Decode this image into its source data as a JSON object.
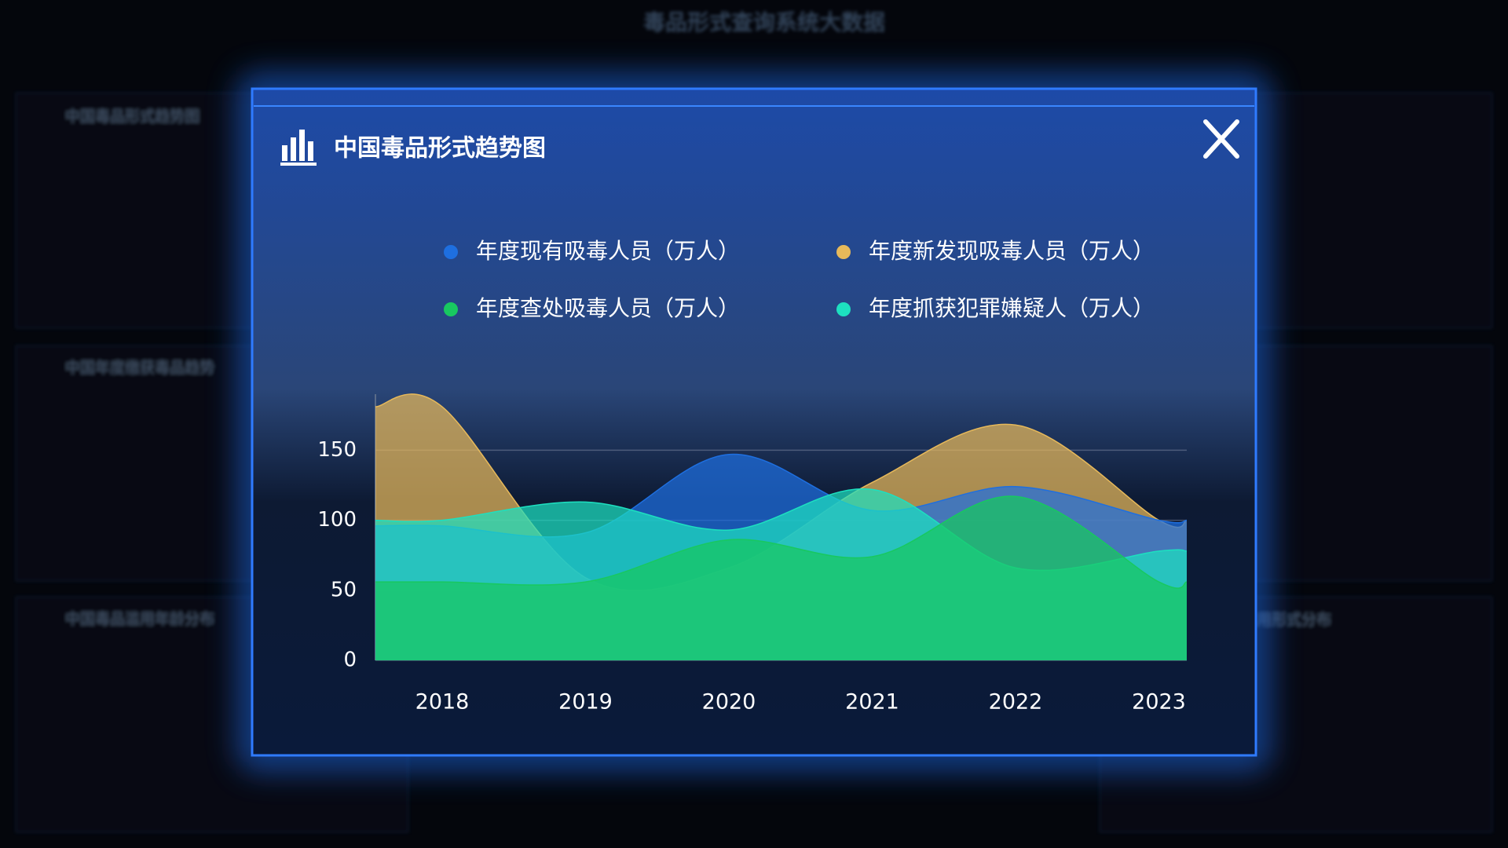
{
  "background": {
    "title": "毒品形式查询系统大数据",
    "panels": [
      "中国毒品形式趋势图",
      "中国年度缴获毒品趋势",
      "中国毒品滥用年龄分布",
      "中国毒品种类滥用形式分布"
    ]
  },
  "modal": {
    "title": "中国毒品形式趋势图"
  },
  "chart_data": {
    "type": "area",
    "categories": [
      "2018",
      "2019",
      "2020",
      "2021",
      "2022",
      "2023"
    ],
    "series": [
      {
        "name": "年度现有吸毒人员（万人）",
        "color": "#1e6fe0",
        "values": [
          96,
          91,
          147,
          107,
          124,
          100
        ]
      },
      {
        "name": "年度新发现吸毒人员（万人）",
        "color": "#e7b95a",
        "values": [
          181,
          59,
          66,
          127,
          168,
          100
        ]
      },
      {
        "name": "年度查处吸毒人员（万人）",
        "color": "#18c860",
        "values": [
          56,
          56,
          86,
          74,
          117,
          56
        ]
      },
      {
        "name": "年度抓获犯罪嫌疑人（万人）",
        "color": "#1de0c0",
        "values": [
          100,
          113,
          93,
          122,
          66,
          78
        ]
      }
    ],
    "ylim": [
      0,
      190
    ],
    "yticks": [
      0,
      50,
      100,
      150
    ],
    "grid": true
  }
}
